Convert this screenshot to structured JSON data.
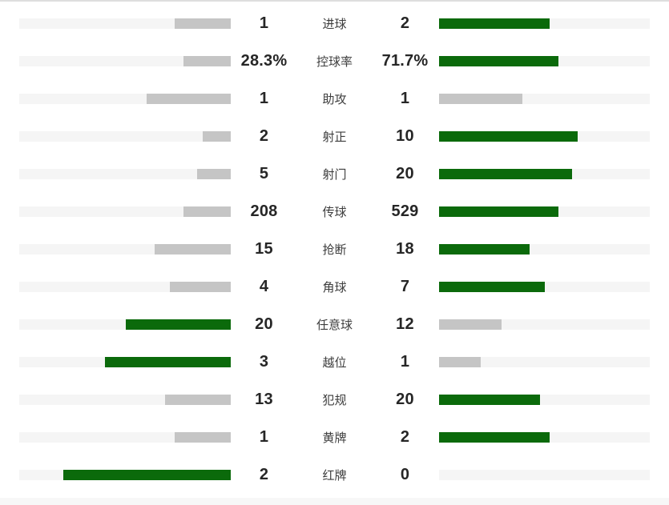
{
  "colors": {
    "leading_fill": "#0b6a0b",
    "trailing_fill": "#c5c5c5",
    "track": "#f5f5f5",
    "value_text": "#262626",
    "label_text": "#3d3d3d",
    "top_border": "#dedede",
    "bottom_strip": "#f7f7f7"
  },
  "chart_data": {
    "type": "bar",
    "variant": "mirrored-comparison",
    "title": "",
    "legend_position": "none",
    "grid": false,
    "categories": [
      "进球",
      "控球率",
      "助攻",
      "射正",
      "射门",
      "传球",
      "抢断",
      "角球",
      "任意球",
      "越位",
      "犯规",
      "黄牌",
      "红牌"
    ],
    "series": [
      {
        "name": "home",
        "side": "left",
        "values": [
          1,
          28.3,
          1,
          2,
          5,
          208,
          15,
          4,
          20,
          3,
          13,
          1,
          2
        ],
        "labels": [
          "1",
          "28.3%",
          "1",
          "2",
          "5",
          "208",
          "15",
          "4",
          "20",
          "3",
          "13",
          "1",
          "2"
        ]
      },
      {
        "name": "away",
        "side": "right",
        "values": [
          2,
          71.7,
          1,
          10,
          20,
          529,
          18,
          7,
          12,
          1,
          20,
          2,
          0
        ],
        "labels": [
          "2",
          "71.7%",
          "1",
          "10",
          "20",
          "529",
          "18",
          "7",
          "12",
          "1",
          "20",
          "2",
          "0"
        ]
      }
    ],
    "bar_rule": "fill fraction of track = value / (home + away), scaled to 79% of track width; larger value colored green, smaller or tied colored gray"
  }
}
